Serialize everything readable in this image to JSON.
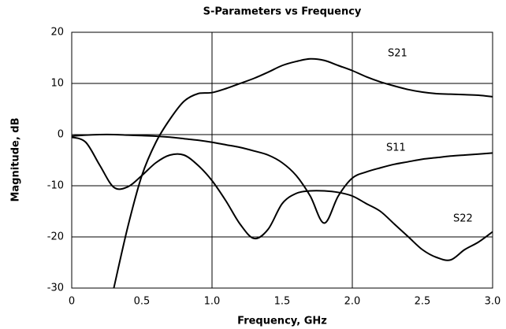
{
  "chart_data": {
    "type": "line",
    "title": "S-Parameters vs Frequency",
    "xlabel": "Frequency, GHz",
    "ylabel": "Magnitude, dB",
    "x": [
      0,
      0.1,
      0.2,
      0.3,
      0.4,
      0.5,
      0.6,
      0.7,
      0.8,
      0.9,
      1.0,
      1.1,
      1.2,
      1.3,
      1.4,
      1.5,
      1.6,
      1.7,
      1.8,
      1.9,
      2.0,
      2.1,
      2.2,
      2.3,
      2.4,
      2.5,
      2.6,
      2.7,
      2.8,
      2.9,
      3.0
    ],
    "series": [
      {
        "name": "S21",
        "color": "#000000",
        "values": [
          null,
          null,
          null,
          -30,
          -18,
          -8,
          -1.5,
          3,
          6.5,
          8,
          8.2,
          9,
          10,
          11,
          12.2,
          13.5,
          14.3,
          14.8,
          14.5,
          13.5,
          12.5,
          11.3,
          10.3,
          9.5,
          8.8,
          8.3,
          8,
          7.9,
          7.8,
          7.7,
          7.4
        ]
      },
      {
        "name": "S11",
        "color": "#000000",
        "values": [
          -0.3,
          -0.1,
          0,
          0,
          -0.1,
          -0.2,
          -0.3,
          -0.5,
          -0.8,
          -1.1,
          -1.5,
          -2,
          -2.5,
          -3.2,
          -4,
          -5.5,
          -8,
          -12,
          -17.3,
          -12,
          -8.5,
          -7.3,
          -6.5,
          -5.8,
          -5.3,
          -4.8,
          -4.5,
          -4.2,
          -4,
          -3.8,
          -3.6
        ]
      },
      {
        "name": "S22",
        "color": "#000000",
        "values": [
          -0.5,
          -1.5,
          -6,
          -10.3,
          -10.2,
          -8,
          -5.5,
          -4,
          -4,
          -6,
          -9,
          -13,
          -17.5,
          -20.3,
          -18.5,
          -13.5,
          -11.5,
          -11,
          -11,
          -11.3,
          -12,
          -13.5,
          -15,
          -17.5,
          -20,
          -22.5,
          -24,
          -24.5,
          -22.5,
          -21,
          -19
        ]
      }
    ],
    "xlim": [
      0,
      3.0
    ],
    "xticks": [
      0,
      0.5,
      {
        "value": 1,
        "label": "1.0"
      },
      1.5,
      {
        "value": 2,
        "label": "2.0"
      },
      2.5,
      {
        "value": 3,
        "label": "3.0"
      }
    ],
    "xgrid": [
      1,
      2
    ],
    "ylim": [
      -30,
      20
    ],
    "yticks": [
      20,
      10,
      0,
      -10,
      -20,
      -30
    ],
    "grid": true
  }
}
